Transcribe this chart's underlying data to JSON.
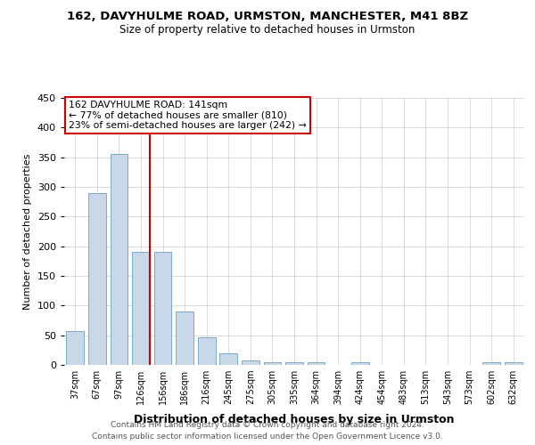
{
  "title1": "162, DAVYHULME ROAD, URMSTON, MANCHESTER, M41 8BZ",
  "title2": "Size of property relative to detached houses in Urmston",
  "xlabel": "Distribution of detached houses by size in Urmston",
  "ylabel": "Number of detached properties",
  "footnote1": "Contains HM Land Registry data © Crown copyright and database right 2024.",
  "footnote2": "Contains public sector information licensed under the Open Government Licence v3.0.",
  "bar_labels": [
    "37sqm",
    "67sqm",
    "97sqm",
    "126sqm",
    "156sqm",
    "186sqm",
    "216sqm",
    "245sqm",
    "275sqm",
    "305sqm",
    "335sqm",
    "364sqm",
    "394sqm",
    "424sqm",
    "454sqm",
    "483sqm",
    "513sqm",
    "543sqm",
    "573sqm",
    "602sqm",
    "632sqm"
  ],
  "bar_values": [
    57,
    290,
    355,
    190,
    190,
    90,
    46,
    20,
    8,
    5,
    5,
    4,
    0,
    4,
    0,
    0,
    0,
    0,
    0,
    4,
    4
  ],
  "bar_color": "#c8d8e8",
  "bar_edgecolor": "#7aaacc",
  "property_label": "162 DAVYHULME ROAD: 141sqm",
  "annotation_line1": "← 77% of detached houses are smaller (810)",
  "annotation_line2": "23% of semi-detached houses are larger (242) →",
  "red_line_color": "#cc0000",
  "annotation_box_color": "#cc0000",
  "ylim": [
    0,
    450
  ],
  "yticks": [
    0,
    50,
    100,
    150,
    200,
    250,
    300,
    350,
    400,
    450
  ],
  "bg_color": "#ffffff",
  "grid_color": "#cccccc",
  "red_line_x": 3.4
}
